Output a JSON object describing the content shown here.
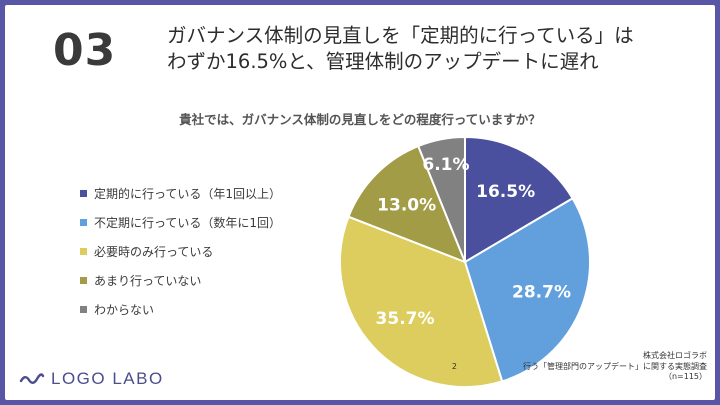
{
  "slide": {
    "number": "03",
    "headline_line1": "ガバナンス体制の見直しを「定期的に行っている」は",
    "headline_line2": "わずか16.5%と、管理体制のアップデートに遅れ"
  },
  "chart_data": {
    "type": "pie",
    "title": "貴社では、ガバナンス体制の見直しをどの程度行っていますか？",
    "legend_position": "left",
    "series": [
      {
        "name": "定期的に行っている（年1回以上）",
        "value": 16.5,
        "label": "16.5%",
        "color": "#4a4f9e"
      },
      {
        "name": "不定期に行っている（数年に1回）",
        "value": 28.7,
        "label": "28.7%",
        "color": "#62a0dd"
      },
      {
        "name": "必要時のみ行っている",
        "value": 35.7,
        "label": "35.7%",
        "color": "#dccd5e"
      },
      {
        "name": "あまり行っていない",
        "value": 13.0,
        "label": "13.0%",
        "color": "#a19c45"
      },
      {
        "name": "わからない",
        "value": 6.1,
        "label": "6.1%",
        "color": "#818181"
      }
    ]
  },
  "brand": {
    "logo_text": "LOGO LABO",
    "logo_icon": "wave-icon",
    "logo_color": "#4b4e8f"
  },
  "source": {
    "company": "株式会社ロゴラボ",
    "survey_prefix": "2",
    "survey_title": "行う「管理部門のアップデート」に関する実態調査",
    "sample": "（n=115）"
  }
}
